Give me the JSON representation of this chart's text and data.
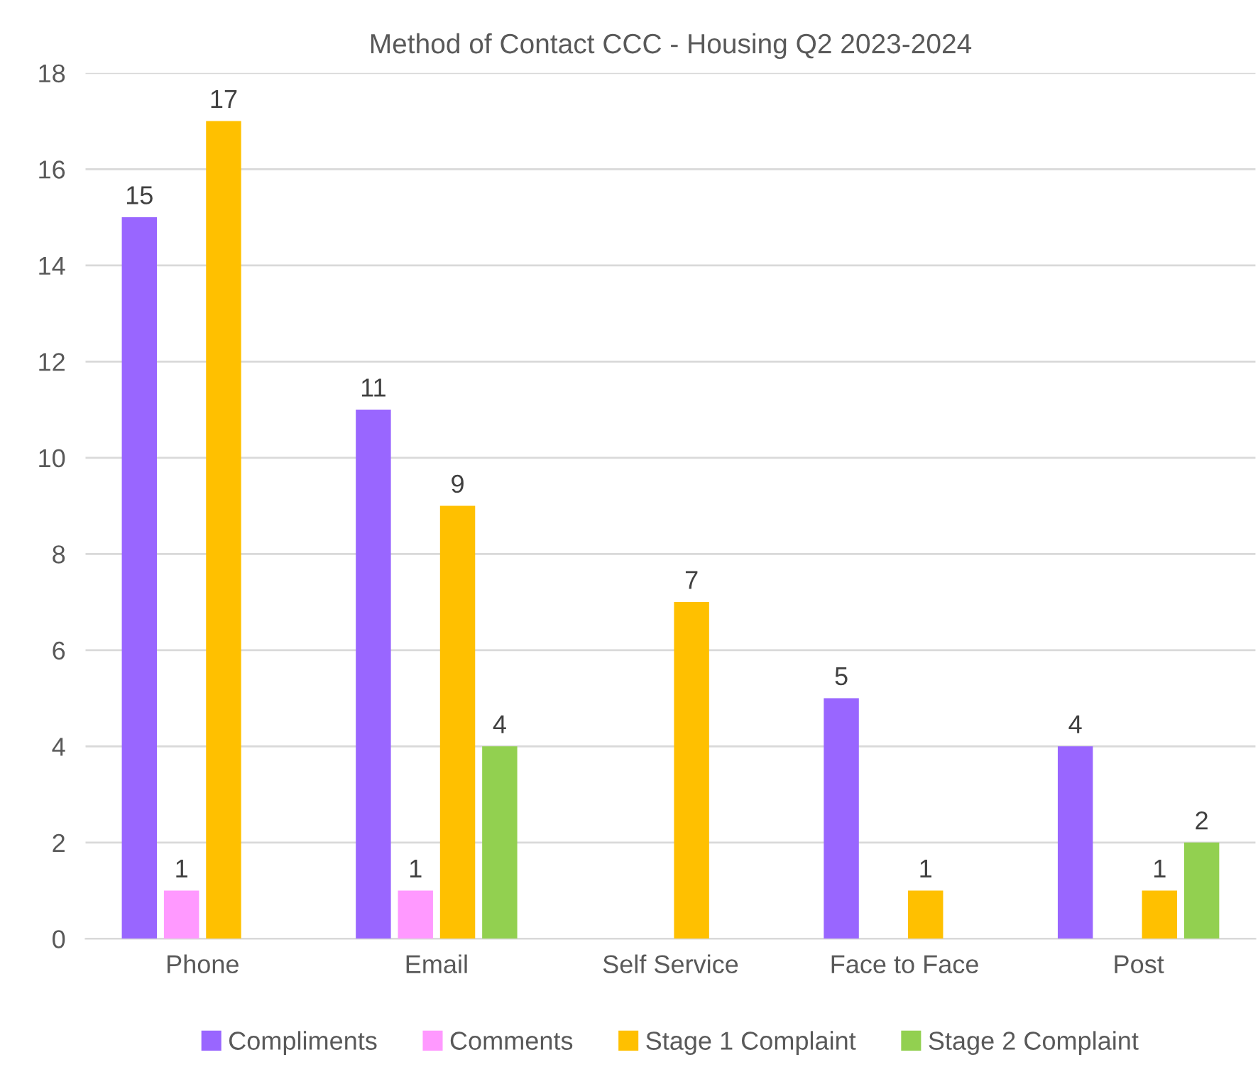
{
  "chart_data": {
    "type": "bar",
    "title": "Method of Contact CCC - Housing Q2 2023-2024",
    "categories": [
      "Phone",
      "Email",
      "Self Service",
      "Face to Face",
      "Post"
    ],
    "series": [
      {
        "name": "Compliments",
        "color": "#9966ff",
        "values": [
          15,
          11,
          null,
          5,
          4
        ]
      },
      {
        "name": "Comments",
        "color": "#ff99ff",
        "values": [
          1,
          1,
          null,
          null,
          null
        ]
      },
      {
        "name": "Stage 1 Complaint",
        "color": "#ffc000",
        "values": [
          17,
          9,
          7,
          1,
          1
        ]
      },
      {
        "name": "Stage 2 Complaint",
        "color": "#92d050",
        "values": [
          null,
          4,
          null,
          null,
          2
        ]
      }
    ],
    "ylim": [
      0,
      18
    ],
    "yticks": [
      0,
      2,
      4,
      6,
      8,
      10,
      12,
      14,
      16,
      18
    ],
    "grid": "y",
    "legend": "bottom",
    "data_labels": true
  }
}
